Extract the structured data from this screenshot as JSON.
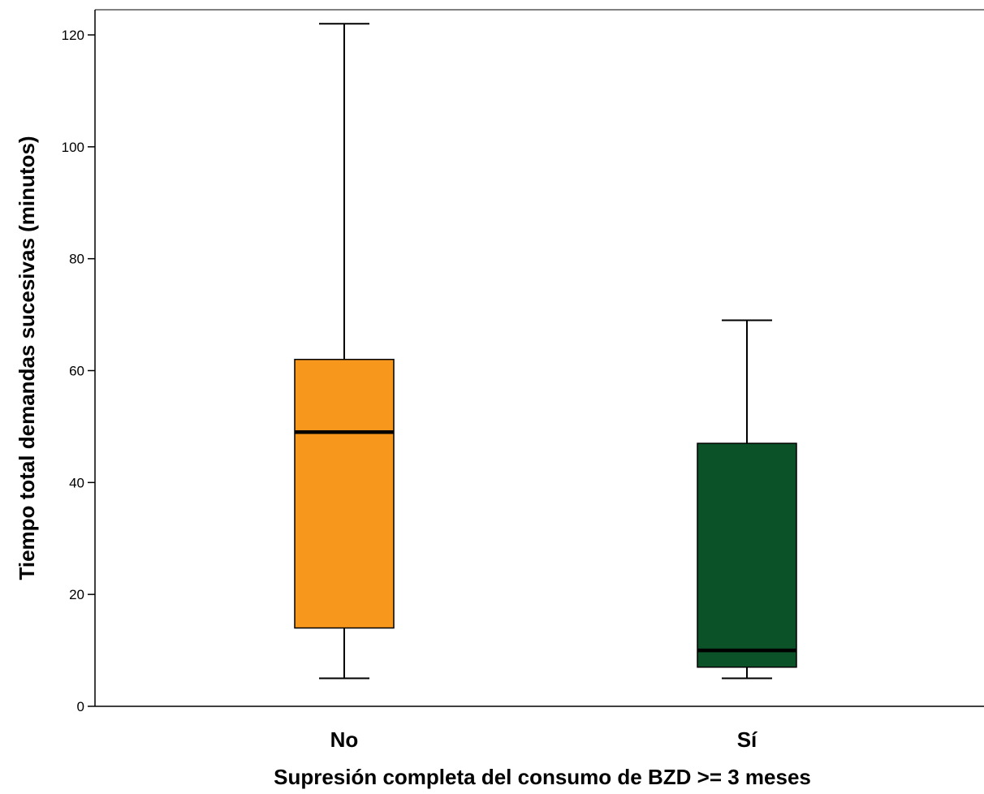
{
  "chart_data": {
    "type": "box",
    "title": "",
    "xlabel": "Supresión completa del consumo de BZD >= 3 meses",
    "ylabel": "Tiempo total demandas sucesivas (minutos)",
    "ylim": [
      0,
      125
    ],
    "yticks": [
      0,
      20,
      40,
      60,
      80,
      100,
      120
    ],
    "grid": false,
    "categories": [
      "No",
      "Sí"
    ],
    "boxes": [
      {
        "category": "No",
        "whisker_low": 5,
        "q1": 14,
        "median": 49,
        "q3": 62,
        "whisker_high": 122,
        "color": "#f7981d"
      },
      {
        "category": "Sí",
        "whisker_low": 5,
        "q1": 7,
        "median": 10,
        "q3": 47,
        "whisker_high": 69,
        "color": "#0b5229"
      }
    ]
  }
}
